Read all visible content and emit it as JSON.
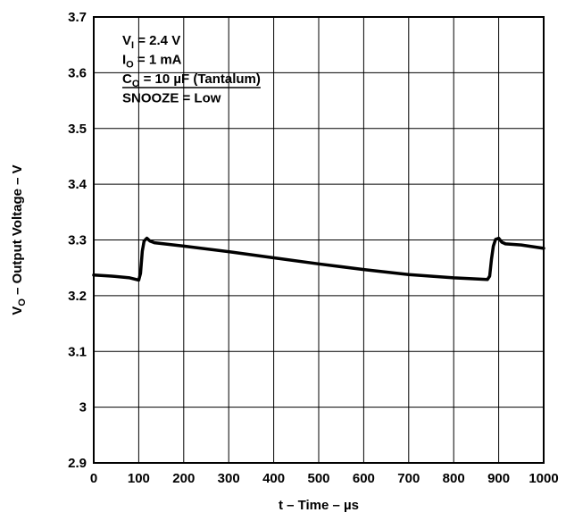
{
  "chart_data": {
    "type": "line",
    "title": "",
    "xlabel": "t – Time – µs",
    "ylabel": {
      "prefix": "V",
      "subscript": "O",
      "suffix": " – Output Voltage – V"
    },
    "xlim": [
      0,
      1000
    ],
    "ylim": [
      2.9,
      3.7
    ],
    "x_ticks": [
      0,
      100,
      200,
      300,
      400,
      500,
      600,
      700,
      800,
      900,
      1000
    ],
    "x_tick_labels": [
      "0",
      "100",
      "200",
      "300",
      "400",
      "500",
      "600",
      "700",
      "800",
      "900",
      "1000"
    ],
    "y_ticks": [
      2.9,
      3.0,
      3.1,
      3.2,
      3.3,
      3.4,
      3.5,
      3.6,
      3.7
    ],
    "y_tick_labels": [
      "2.9",
      "3",
      "3.1",
      "3.2",
      "3.3",
      "3.4",
      "3.5",
      "3.6",
      "3.7"
    ],
    "grid": true,
    "legend": "none",
    "annotations": [
      {
        "main": "V",
        "sub": "I",
        "rest": " = 2.4 V",
        "underline": false
      },
      {
        "main": "I",
        "sub": "O",
        "rest": " = 1 mA",
        "underline": false
      },
      {
        "main": "C",
        "sub": "O",
        "rest": " = 10 µF (Tantalum)",
        "underline": true
      },
      {
        "main": "SNOOZE = Low",
        "sub": "",
        "rest": "",
        "underline": false
      }
    ],
    "series": [
      {
        "color": "#000000",
        "x": [
          0,
          40,
          80,
          100,
          104,
          108,
          112,
          118,
          125,
          135,
          200,
          300,
          400,
          500,
          600,
          700,
          800,
          875,
          880,
          884,
          888,
          893,
          900,
          907,
          915,
          950,
          1000
        ],
        "y": [
          3.237,
          3.235,
          3.232,
          3.228,
          3.24,
          3.28,
          3.298,
          3.303,
          3.298,
          3.295,
          3.289,
          3.279,
          3.268,
          3.257,
          3.247,
          3.238,
          3.232,
          3.229,
          3.235,
          3.265,
          3.289,
          3.301,
          3.303,
          3.296,
          3.293,
          3.291,
          3.285
        ]
      }
    ]
  }
}
